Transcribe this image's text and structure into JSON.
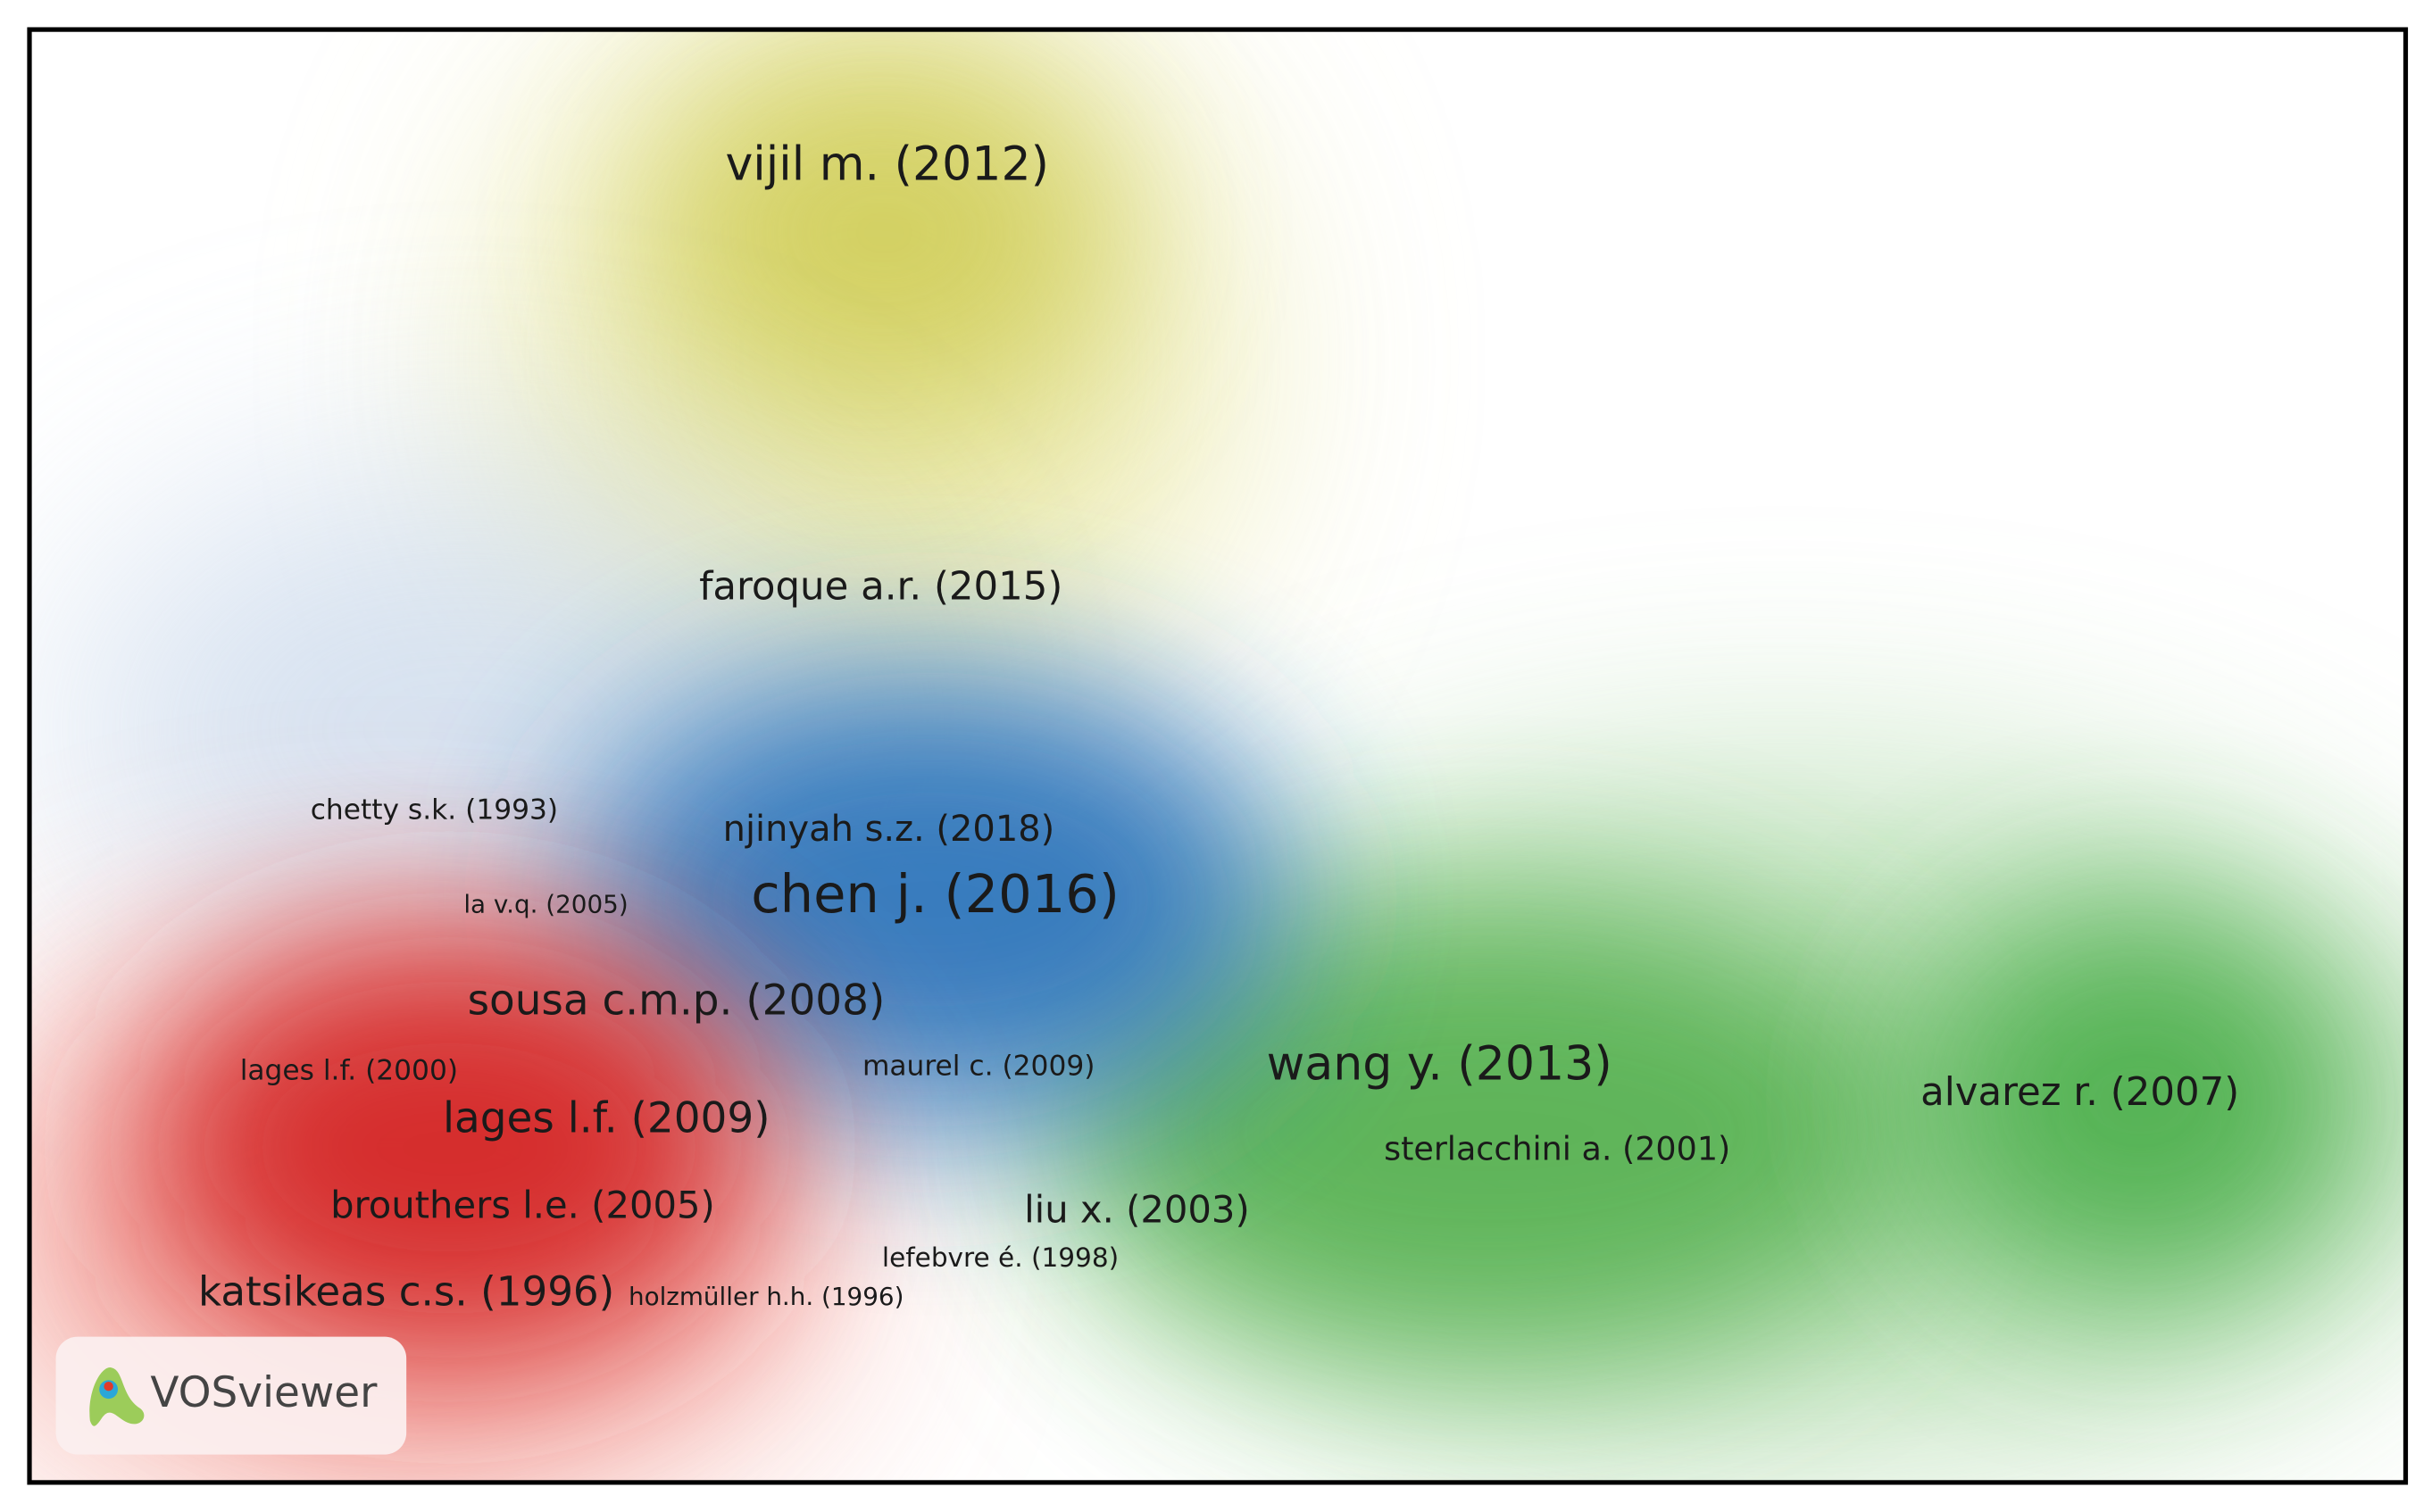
{
  "labels": [
    "vijil m. (2012)",
    "faroque a.r. (2015)",
    "chetty s.k. (1993)",
    "njinyah s.z. (2018)",
    "la v.q. (2005)",
    "chen j. (2016)",
    "sousa c.m.p. (2008)",
    "lages l.f. (2000)",
    "maurel c. (2009)",
    "wang y. (2013)",
    "alvarez r. (2007)",
    "lages l.f. (2009)",
    "sterlacchini a. (2001)",
    "brouthers l.e. (2005)",
    "liu x. (2003)",
    "lefebvre é. (1998)",
    "katsikeas c.s. (1996)",
    "holzmüller h.h. (1996)"
  ],
  "logo": "VOSviewer"
}
